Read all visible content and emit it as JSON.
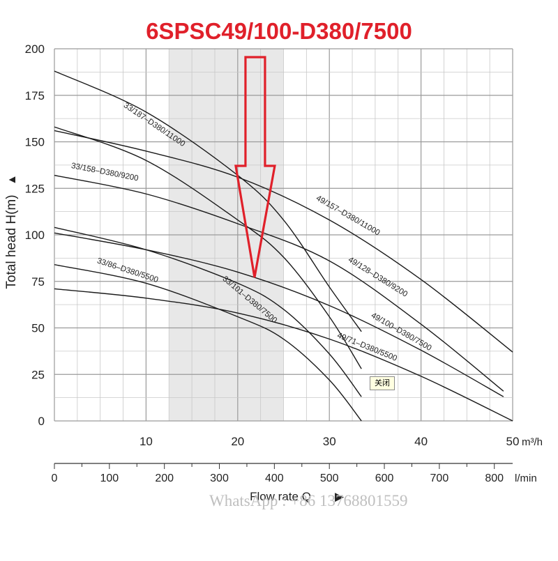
{
  "page_title": "6SPSC49/100-D380/7500",
  "watermark": "WhatsApp : +86 13768801559",
  "close_label": "关闭",
  "colors": {
    "title": "#e0202a",
    "arrow": "#e0202a",
    "curves": "#1a1a1a",
    "highlight_band": "#e8e8e8",
    "grid": "#c8c8c8"
  },
  "chart_data": {
    "type": "line",
    "ylabel": "Total head H(m)",
    "ylabel_arrow": "▲",
    "xlabel": "Flow rate Q",
    "xlabel_arrow": "▶",
    "x_unit": "m³/h",
    "x2_unit": "l/min",
    "xlim": [
      0,
      50
    ],
    "ylim": [
      0,
      200
    ],
    "x_ticks": [
      10,
      20,
      30,
      40,
      50
    ],
    "y_ticks": [
      0,
      25,
      50,
      75,
      100,
      125,
      150,
      175,
      200
    ],
    "x2_ticks": [
      0,
      100,
      200,
      300,
      400,
      500,
      600,
      700,
      800
    ],
    "highlight_range": [
      12.5,
      25
    ],
    "grid": true,
    "series": [
      {
        "name": "33/187-D380/11000",
        "points": [
          [
            0,
            188
          ],
          [
            10,
            166
          ],
          [
            20,
            132
          ],
          [
            25,
            108
          ],
          [
            30,
            72
          ],
          [
            33.5,
            48
          ]
        ]
      },
      {
        "name": "33/158-D380/9200",
        "points": [
          [
            0,
            158
          ],
          [
            10,
            140
          ],
          [
            20,
            108
          ],
          [
            25,
            88
          ],
          [
            30,
            56
          ],
          [
            33.5,
            28
          ]
        ]
      },
      {
        "name": "33/101-D380/7500",
        "points": [
          [
            0,
            104
          ],
          [
            10,
            92
          ],
          [
            20,
            74
          ],
          [
            25,
            60
          ],
          [
            30,
            36
          ],
          [
            33.5,
            13
          ]
        ]
      },
      {
        "name": "33/86-D380/5500",
        "points": [
          [
            0,
            84
          ],
          [
            10,
            74
          ],
          [
            20,
            56
          ],
          [
            25,
            44
          ],
          [
            30,
            22
          ],
          [
            33.5,
            0
          ]
        ]
      },
      {
        "name": "49/157-D380/11000",
        "points": [
          [
            0,
            156
          ],
          [
            10,
            145
          ],
          [
            20,
            131
          ],
          [
            30,
            108
          ],
          [
            40,
            76
          ],
          [
            50,
            37
          ]
        ]
      },
      {
        "name": "49/128-D380/9200",
        "points": [
          [
            0,
            132
          ],
          [
            10,
            122
          ],
          [
            20,
            106
          ],
          [
            30,
            86
          ],
          [
            40,
            52
          ],
          [
            49,
            16
          ]
        ]
      },
      {
        "name": "49/100-D380/7500",
        "points": [
          [
            0,
            101
          ],
          [
            10,
            92
          ],
          [
            20,
            80
          ],
          [
            30,
            62
          ],
          [
            40,
            38
          ],
          [
            49,
            13
          ]
        ]
      },
      {
        "name": "49/71-D380/5500",
        "points": [
          [
            0,
            71
          ],
          [
            10,
            66
          ],
          [
            20,
            58
          ],
          [
            30,
            44
          ],
          [
            40,
            24
          ],
          [
            50,
            0
          ]
        ]
      }
    ],
    "labels": [
      {
        "text": "33/187–D380/11000",
        "at": [
          7.5,
          169
        ],
        "angle": 34
      },
      {
        "text": "33/158–D380/9200",
        "at": [
          1.8,
          136
        ],
        "angle": 11
      },
      {
        "text": "33/101–D380/7500",
        "at": [
          18.3,
          76
        ],
        "angle": 40
      },
      {
        "text": "33/86–D380/5500",
        "at": [
          4.6,
          85
        ],
        "angle": 18
      },
      {
        "text": "49/157–D380/11000",
        "at": [
          28.5,
          119
        ],
        "angle": 30
      },
      {
        "text": "49/128–D380/9200",
        "at": [
          32,
          86
        ],
        "angle": 32
      },
      {
        "text": "49/100–D380/7500",
        "at": [
          34.5,
          56
        ],
        "angle": 30
      },
      {
        "text": "49/71–D380/5500",
        "at": [
          30.8,
          45
        ],
        "angle": 22
      }
    ]
  }
}
